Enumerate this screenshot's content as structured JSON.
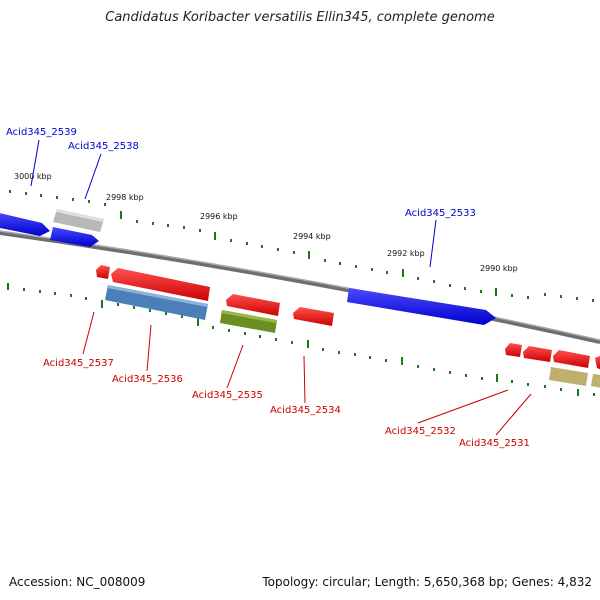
{
  "title": "Candidatus Koribacter versatilis Ellin345, complete genome",
  "footer": {
    "accession": "Accession: NC_008009",
    "summary": "Topology: circular; Length: 5,650,368 bp; Genes: 4,832"
  },
  "scale_labels": [
    "3000 kbp",
    "2998 kbp",
    "2996 kbp",
    "2994 kbp",
    "2992 kbp",
    "2990 kbp"
  ],
  "gene_labels": {
    "forward": [
      "Acid345_2539",
      "Acid345_2538",
      "Acid345_2533"
    ],
    "reverse": [
      "Acid345_2537",
      "Acid345_2536",
      "Acid345_2535",
      "Acid345_2534",
      "Acid345_2532",
      "Acid345_2531"
    ]
  },
  "colors": {
    "forward_gene": "#0000ee",
    "reverse_gene": "#ee0000",
    "backbone": "#808080",
    "tick": "#1a7a1a",
    "gray_feature": "#b4b4b4",
    "steelblue_feature": "#4a7fb8",
    "olive_feature": "#6b8e23",
    "khaki_feature": "#c0b070",
    "forward_label": "#0000cc",
    "reverse_label": "#cc0000"
  }
}
